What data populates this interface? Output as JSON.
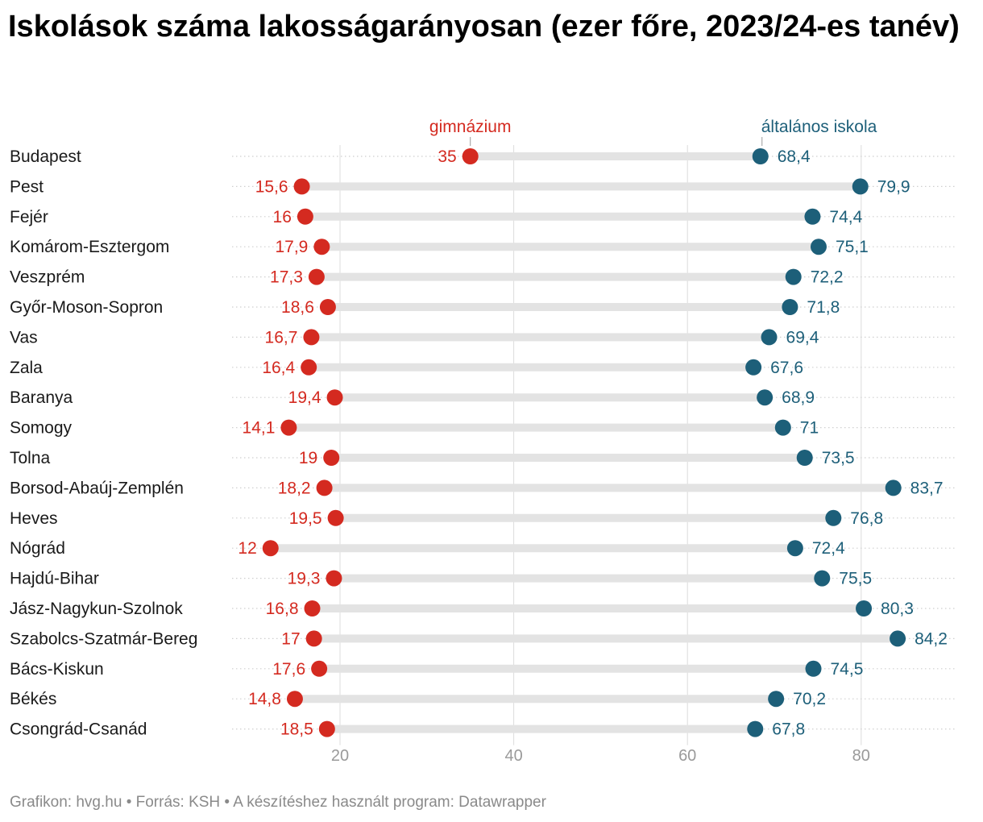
{
  "footer": "Grafikon: hvg.hu • Forrás: KSH • A készítéshez használt program: Datawrapper",
  "chart_data": {
    "type": "dot",
    "title": "Iskolások száma lakosságarányosan (ezer főre, 2023/24-es tanév)",
    "xlim": [
      8,
      90
    ],
    "x_ticks": [
      20,
      40,
      60,
      80
    ],
    "categories": [
      "Budapest",
      "Pest",
      "Fejér",
      "Komárom-Esztergom",
      "Veszprém",
      "Győr-Moson-Sopron",
      "Vas",
      "Zala",
      "Baranya",
      "Somogy",
      "Tolna",
      "Borsod-Abaúj-Zemplén",
      "Heves",
      "Nógrád",
      "Hajdú-Bihar",
      "Jász-Nagykun-Szolnok",
      "Szabolcs-Szatmár-Bereg",
      "Bács-Kiskun",
      "Békés",
      "Csongrád-Csanád"
    ],
    "series": [
      {
        "name": "gimnázium",
        "color": "#d42a20",
        "values": [
          35,
          15.6,
          16,
          17.9,
          17.3,
          18.6,
          16.7,
          16.4,
          19.4,
          14.1,
          19,
          18.2,
          19.5,
          12,
          19.3,
          16.8,
          17,
          17.6,
          14.8,
          18.5
        ],
        "labels": [
          "35",
          "15,6",
          "16",
          "17,9",
          "17,3",
          "18,6",
          "16,7",
          "16,4",
          "19,4",
          "14,1",
          "19",
          "18,2",
          "19,5",
          "12",
          "19,3",
          "16,8",
          "17",
          "17,6",
          "14,8",
          "18,5"
        ]
      },
      {
        "name": "általános iskola",
        "color": "#1d5f79",
        "values": [
          68.4,
          79.9,
          74.4,
          75.1,
          72.2,
          71.8,
          69.4,
          67.6,
          68.9,
          71,
          73.5,
          83.7,
          76.8,
          72.4,
          75.5,
          80.3,
          84.2,
          74.5,
          70.2,
          67.8
        ],
        "labels": [
          "68,4",
          "79,9",
          "74,4",
          "75,1",
          "72,2",
          "71,8",
          "69,4",
          "67,6",
          "68,9",
          "71",
          "73,5",
          "83,7",
          "76,8",
          "72,4",
          "75,5",
          "80,3",
          "84,2",
          "74,5",
          "70,2",
          "67,8"
        ]
      }
    ]
  }
}
